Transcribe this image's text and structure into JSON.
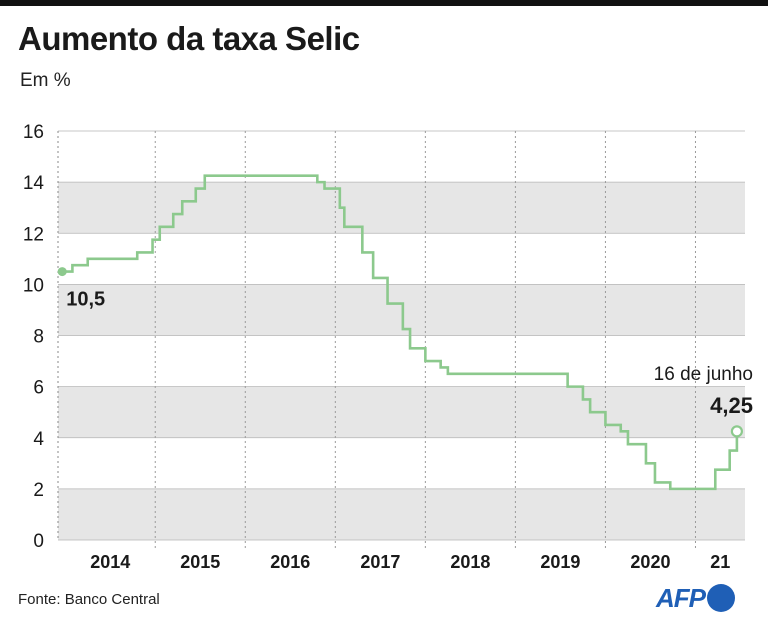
{
  "header": {
    "title": "Aumento da taxa Selic",
    "subtitle": "Em %"
  },
  "footer": {
    "source": "Fonte: Banco Central",
    "logo_text": "AFP"
  },
  "colors": {
    "line": "#8cc98d",
    "band": "#e6e6e6",
    "grid": "#9a9a9a",
    "text": "#1a1a1a",
    "brand": "#1f5fb6"
  },
  "chart_data": {
    "type": "line",
    "title": "Aumento da taxa Selic",
    "subtitle": "Em %",
    "xlabel": "",
    "ylabel": "",
    "ylim": [
      0,
      16
    ],
    "xlim": [
      2013.92,
      2021.55
    ],
    "y_ticks": [
      0,
      2,
      4,
      6,
      8,
      10,
      12,
      14,
      16
    ],
    "x_tick_labels": [
      "2014",
      "2015",
      "2016",
      "2017",
      "2018",
      "2019",
      "2020",
      "21"
    ],
    "grid": "horizontal bands and vertical dotted year separators",
    "series": [
      {
        "step": true,
        "points": [
          [
            2014.0,
            10.5
          ],
          [
            2014.08,
            10.75
          ],
          [
            2014.25,
            11.0
          ],
          [
            2014.8,
            11.25
          ],
          [
            2014.97,
            11.75
          ],
          [
            2015.05,
            12.25
          ],
          [
            2015.2,
            12.75
          ],
          [
            2015.3,
            13.25
          ],
          [
            2015.45,
            13.75
          ],
          [
            2015.55,
            14.25
          ],
          [
            2016.8,
            14.0
          ],
          [
            2016.88,
            13.75
          ],
          [
            2017.05,
            13.0
          ],
          [
            2017.1,
            12.25
          ],
          [
            2017.3,
            11.25
          ],
          [
            2017.42,
            10.25
          ],
          [
            2017.58,
            9.25
          ],
          [
            2017.75,
            8.25
          ],
          [
            2017.83,
            7.5
          ],
          [
            2018.0,
            7.0
          ],
          [
            2018.17,
            6.75
          ],
          [
            2018.25,
            6.5
          ],
          [
            2019.58,
            6.0
          ],
          [
            2019.75,
            5.5
          ],
          [
            2019.83,
            5.0
          ],
          [
            2020.0,
            4.5
          ],
          [
            2020.17,
            4.25
          ],
          [
            2020.25,
            3.75
          ],
          [
            2020.45,
            3.0
          ],
          [
            2020.55,
            2.25
          ],
          [
            2020.72,
            2.0
          ],
          [
            2021.22,
            2.75
          ],
          [
            2021.38,
            3.5
          ],
          [
            2021.46,
            4.25
          ]
        ]
      }
    ],
    "annotations": [
      {
        "text": "10,5",
        "x": 2014.0,
        "y": 10.5
      },
      {
        "text": "16 de junho",
        "x": 2021.46,
        "y": 4.25
      },
      {
        "text": "4,25",
        "x": 2021.46,
        "y": 4.25
      }
    ]
  }
}
